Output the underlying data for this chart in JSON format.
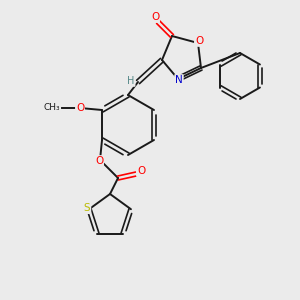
{
  "background_color": "#ebebeb",
  "bond_color": "#1a1a1a",
  "atom_colors": {
    "O": "#ff0000",
    "N": "#0000cc",
    "S": "#bbbb00",
    "C": "#1a1a1a",
    "H": "#558888"
  }
}
